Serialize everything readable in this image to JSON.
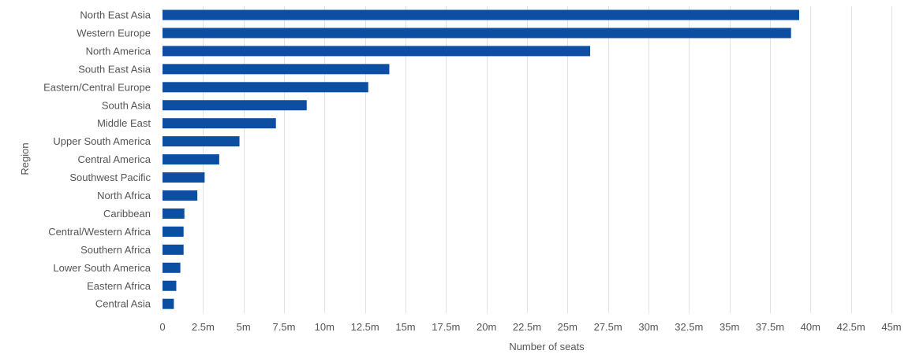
{
  "chart_data": {
    "type": "bar",
    "orientation": "horizontal",
    "categories": [
      "North East Asia",
      "Western Europe",
      "North America",
      "South East Asia",
      "Eastern/Central Europe",
      "South Asia",
      "Middle East",
      "Upper South America",
      "Central America",
      "Southwest Pacific",
      "North Africa",
      "Caribbean",
      "Central/Western Africa",
      "Southern Africa",
      "Lower South America",
      "Eastern Africa",
      "Central Asia"
    ],
    "values": [
      39.3,
      38.8,
      26.4,
      14.0,
      12.7,
      8.9,
      7.0,
      4.75,
      3.5,
      2.6,
      2.15,
      1.35,
      1.3,
      1.3,
      1.1,
      0.85,
      0.7
    ],
    "value_unit": "m",
    "xlabel": "Number of seats",
    "ylabel": "Region",
    "xlim": [
      0,
      45
    ],
    "x_ticks": [
      "0",
      "2.5m",
      "5m",
      "7.5m",
      "10m",
      "12.5m",
      "15m",
      "17.5m",
      "20m",
      "22.5m",
      "25m",
      "27.5m",
      "30m",
      "32.5m",
      "35m",
      "37.5m",
      "40m",
      "42.5m",
      "45m"
    ],
    "x_tick_values": [
      0,
      2.5,
      5,
      7.5,
      10,
      12.5,
      15,
      17.5,
      20,
      22.5,
      25,
      27.5,
      30,
      32.5,
      35,
      37.5,
      40,
      42.5,
      45
    ],
    "grid": true,
    "legend": "none",
    "colors": {
      "bar": "#0b4ea2",
      "grid": "#e2e2e2",
      "text": "#555555"
    }
  }
}
